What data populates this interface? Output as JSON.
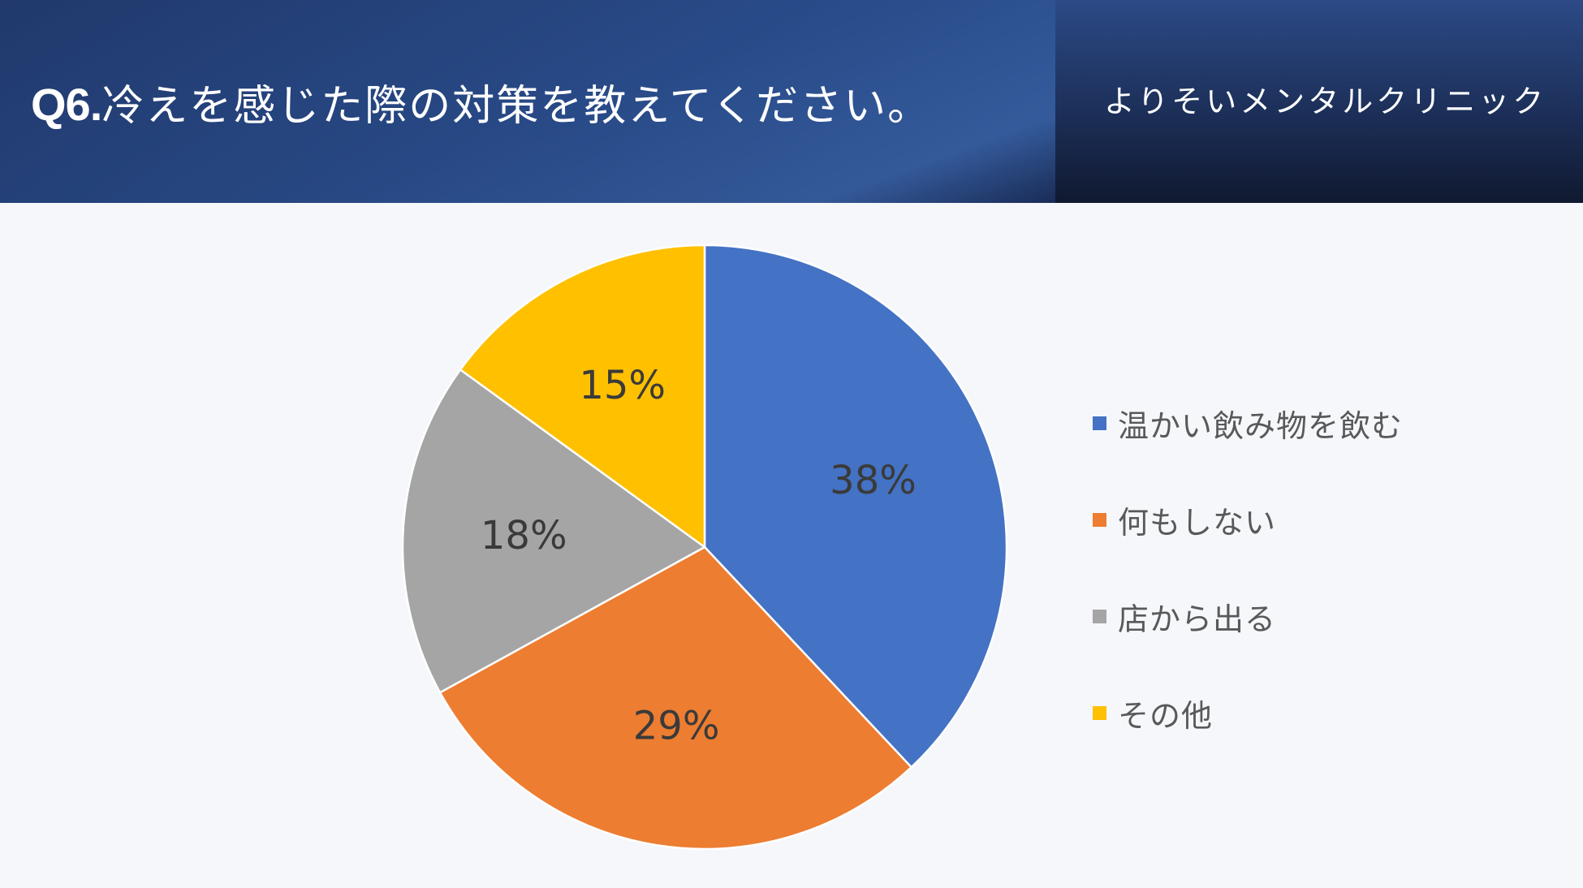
{
  "header": {
    "question_number": "Q6.",
    "question_text": "冷えを感じた際の対策を教えてください。",
    "clinic_name": "よりそいメンタルクリニック"
  },
  "chart_data": {
    "type": "pie",
    "categories": [
      "温かい飲み物を飲む",
      "何もしない",
      "店から出る",
      "その他"
    ],
    "values": [
      38,
      29,
      18,
      15
    ],
    "labels": [
      "38%",
      "29%",
      "18%",
      "15%"
    ],
    "colors": [
      "#4472c4",
      "#ed7d31",
      "#a5a5a5",
      "#ffc000"
    ],
    "legend_position": "right"
  }
}
